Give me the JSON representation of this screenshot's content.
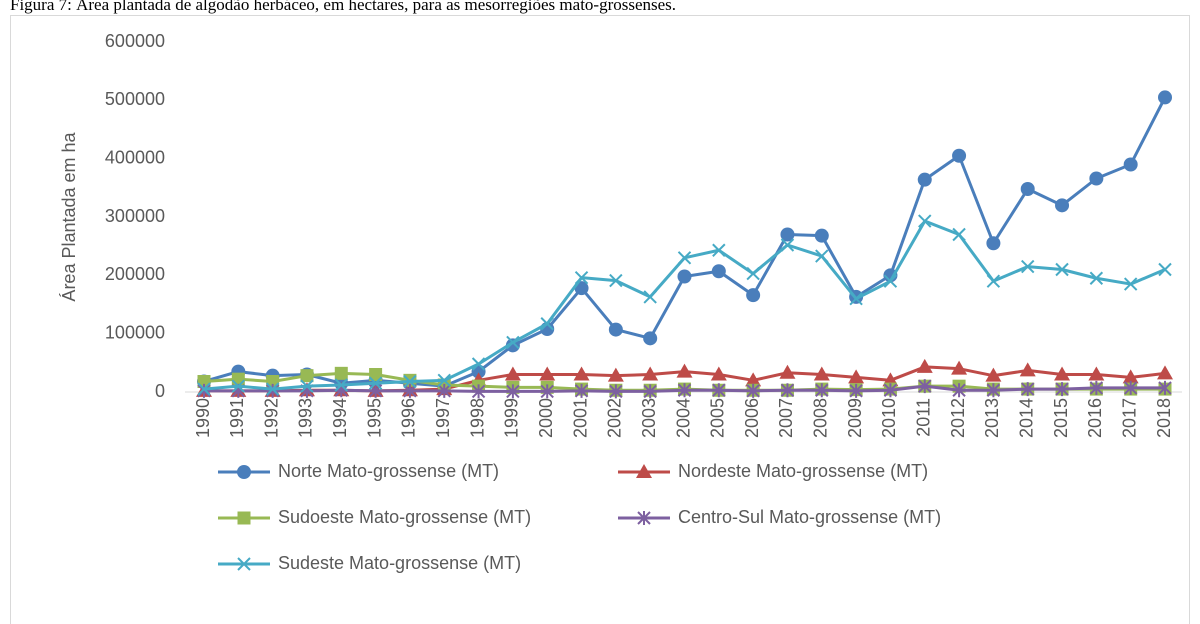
{
  "chart_data": {
    "type": "line",
    "title": "Figura 7: Área plantada de algodão herbáceo, em hectares, para as mesorregiões mato-grossenses.",
    "y_label": "Área Plantada em ha",
    "categories": [
      "1990",
      "1991",
      "1992",
      "1993",
      "1994",
      "1995",
      "1996",
      "1997",
      "1998",
      "1999",
      "2000",
      "2001",
      "2002",
      "2003",
      "2004",
      "2005",
      "2006",
      "2007",
      "2008",
      "2009",
      "2010",
      "2011",
      "2012",
      "2013",
      "2014",
      "2015",
      "2016",
      "2017",
      "2018"
    ],
    "ylim": [
      0,
      600000
    ],
    "yticks": [
      0,
      100000,
      200000,
      300000,
      400000,
      500000,
      600000
    ],
    "grid": false,
    "legend": "bottom",
    "series": [
      {
        "name": "Norte Mato-grossense (MT)",
        "color": "#4a7ebb",
        "marker": "circle",
        "values": [
          18000,
          35000,
          28000,
          30000,
          15000,
          20000,
          15000,
          10000,
          35000,
          80000,
          108000,
          178000,
          107000,
          92000,
          198000,
          207000,
          166000,
          270000,
          268000,
          163000,
          200000,
          364000,
          405000,
          255000,
          348000,
          320000,
          366000,
          390000,
          505000
        ]
      },
      {
        "name": "Nordeste Mato-grossense (MT)",
        "color": "#be4b48",
        "marker": "triangle",
        "values": [
          2000,
          2000,
          2000,
          3000,
          3000,
          2000,
          3000,
          5000,
          20000,
          30000,
          30000,
          30000,
          28000,
          30000,
          35000,
          30000,
          20000,
          33000,
          30000,
          25000,
          20000,
          43000,
          40000,
          28000,
          37000,
          30000,
          30000,
          25000,
          32000
        ]
      },
      {
        "name": "Sudoeste Mato-grossense (MT)",
        "color": "#98b954",
        "marker": "square",
        "values": [
          18000,
          22000,
          18000,
          28000,
          32000,
          30000,
          20000,
          12000,
          10000,
          8000,
          8000,
          5000,
          3000,
          3000,
          5000,
          3000,
          3000,
          3000,
          5000,
          4000,
          5000,
          10000,
          10000,
          5000,
          5000,
          5000,
          5000,
          5000,
          5000
        ]
      },
      {
        "name": "Centro-Sul Mato-grossense (MT)",
        "color": "#7d60a0",
        "marker": "star",
        "values": [
          2000,
          2000,
          2000,
          2000,
          3000,
          2000,
          2000,
          2000,
          1000,
          1000,
          1000,
          2000,
          1000,
          1000,
          3000,
          3000,
          2000,
          3000,
          3000,
          2000,
          3000,
          10000,
          3000,
          3000,
          5000,
          5000,
          7000,
          7000,
          7000
        ]
      },
      {
        "name": "Sudeste Mato-grossense (MT)",
        "color": "#46aac5",
        "marker": "x",
        "values": [
          5000,
          10000,
          5000,
          10000,
          12000,
          15000,
          18000,
          20000,
          48000,
          85000,
          117000,
          196000,
          191000,
          163000,
          230000,
          243000,
          203000,
          252000,
          233000,
          160000,
          190000,
          293000,
          270000,
          190000,
          215000,
          210000,
          195000,
          185000,
          210000
        ]
      }
    ]
  }
}
